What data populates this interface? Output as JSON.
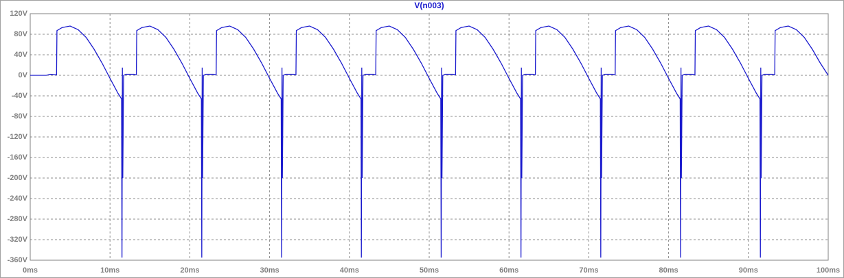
{
  "chart_data": {
    "type": "line",
    "title": "V(n003)",
    "color": "#1a1acd",
    "title_color": "#1a1acd",
    "grid": true,
    "x": [
      0,
      2,
      2.5,
      3.3,
      3.35,
      4,
      5,
      6,
      7,
      8,
      9,
      10,
      11,
      11.45,
      11.5,
      11.55,
      11.6,
      11.7,
      12,
      13,
      13.3,
      13.35,
      14,
      15,
      16,
      17,
      18,
      19,
      20,
      21,
      21.45,
      21.5,
      21.55,
      21.6,
      21.7,
      22,
      23,
      23.3,
      23.35,
      24,
      25,
      26,
      27,
      28,
      29,
      30,
      31,
      31.45,
      31.5,
      31.55,
      31.6,
      31.7,
      32,
      33,
      33.3,
      33.35,
      34,
      35,
      36,
      37,
      38,
      39,
      40,
      41,
      41.45,
      41.5,
      41.55,
      41.6,
      41.7,
      42,
      43,
      43.3,
      43.35,
      44,
      45,
      46,
      47,
      48,
      49,
      50,
      51,
      51.45,
      51.5,
      51.55,
      51.6,
      51.7,
      52,
      53,
      53.3,
      53.35,
      54,
      55,
      56,
      57,
      58,
      59,
      60,
      61,
      61.45,
      61.5,
      61.55,
      61.6,
      61.7,
      62,
      63,
      63.3,
      63.35,
      64,
      65,
      66,
      67,
      68,
      69,
      70,
      71,
      71.45,
      71.5,
      71.55,
      71.6,
      71.7,
      72,
      73,
      73.3,
      73.35,
      74,
      75,
      76,
      77,
      78,
      79,
      80,
      81,
      81.45,
      81.5,
      81.55,
      81.6,
      81.7,
      82,
      83,
      83.3,
      83.35,
      84,
      85,
      86,
      87,
      88,
      89,
      90,
      91,
      91.45,
      91.5,
      91.55,
      91.6,
      91.7,
      92,
      93,
      93.3,
      93.35,
      94,
      95,
      96,
      97,
      98,
      99,
      100
    ],
    "values": [
      0,
      0,
      2,
      1,
      87,
      93,
      96,
      89,
      74,
      51,
      24,
      -6,
      -35,
      -46,
      -355,
      15,
      -200,
      0,
      2,
      2,
      1,
      87,
      93,
      96,
      89,
      74,
      51,
      24,
      -6,
      -35,
      -46,
      -355,
      15,
      -200,
      0,
      2,
      2,
      1,
      87,
      93,
      96,
      89,
      74,
      51,
      24,
      -6,
      -35,
      -46,
      -355,
      15,
      -200,
      0,
      2,
      2,
      1,
      87,
      93,
      96,
      89,
      74,
      51,
      24,
      -6,
      -35,
      -46,
      -355,
      15,
      -200,
      0,
      2,
      2,
      1,
      87,
      93,
      96,
      89,
      74,
      51,
      24,
      -6,
      -35,
      -46,
      -355,
      15,
      -200,
      0,
      2,
      2,
      1,
      87,
      93,
      96,
      89,
      74,
      51,
      24,
      -6,
      -35,
      -46,
      -355,
      15,
      -200,
      0,
      2,
      2,
      1,
      87,
      93,
      96,
      89,
      74,
      51,
      24,
      -6,
      -35,
      -46,
      -355,
      15,
      -200,
      0,
      2,
      2,
      1,
      87,
      93,
      96,
      89,
      74,
      51,
      24,
      -6,
      -35,
      -46,
      -355,
      15,
      -200,
      0,
      2,
      2,
      1,
      87,
      93,
      96,
      89,
      74,
      51,
      24,
      -6,
      -35,
      -46,
      -355,
      15,
      -200,
      0,
      2,
      2,
      1,
      87,
      93,
      96,
      89,
      74,
      51,
      24,
      0
    ],
    "xlim": [
      0,
      100
    ],
    "ylim": [
      -360,
      120
    ],
    "xticks": [
      {
        "value": 0,
        "label": "0ms"
      },
      {
        "value": 10,
        "label": "10ms"
      },
      {
        "value": 20,
        "label": "20ms"
      },
      {
        "value": 30,
        "label": "30ms"
      },
      {
        "value": 40,
        "label": "40ms"
      },
      {
        "value": 50,
        "label": "50ms"
      },
      {
        "value": 60,
        "label": "60ms"
      },
      {
        "value": 70,
        "label": "70ms"
      },
      {
        "value": 80,
        "label": "80ms"
      },
      {
        "value": 90,
        "label": "90ms"
      },
      {
        "value": 100,
        "label": "100ms"
      }
    ],
    "yticks": [
      {
        "value": 120,
        "label": "120V"
      },
      {
        "value": 80,
        "label": "80V"
      },
      {
        "value": 40,
        "label": "40V"
      },
      {
        "value": 0,
        "label": "0V"
      },
      {
        "value": -40,
        "label": "-40V"
      },
      {
        "value": -80,
        "label": "-80V"
      },
      {
        "value": -120,
        "label": "-120V"
      },
      {
        "value": -160,
        "label": "-160V"
      },
      {
        "value": -200,
        "label": "-200V"
      },
      {
        "value": -240,
        "label": "-240V"
      },
      {
        "value": -280,
        "label": "-280V"
      },
      {
        "value": -320,
        "label": "-320V"
      },
      {
        "value": -360,
        "label": "-360V"
      }
    ]
  }
}
